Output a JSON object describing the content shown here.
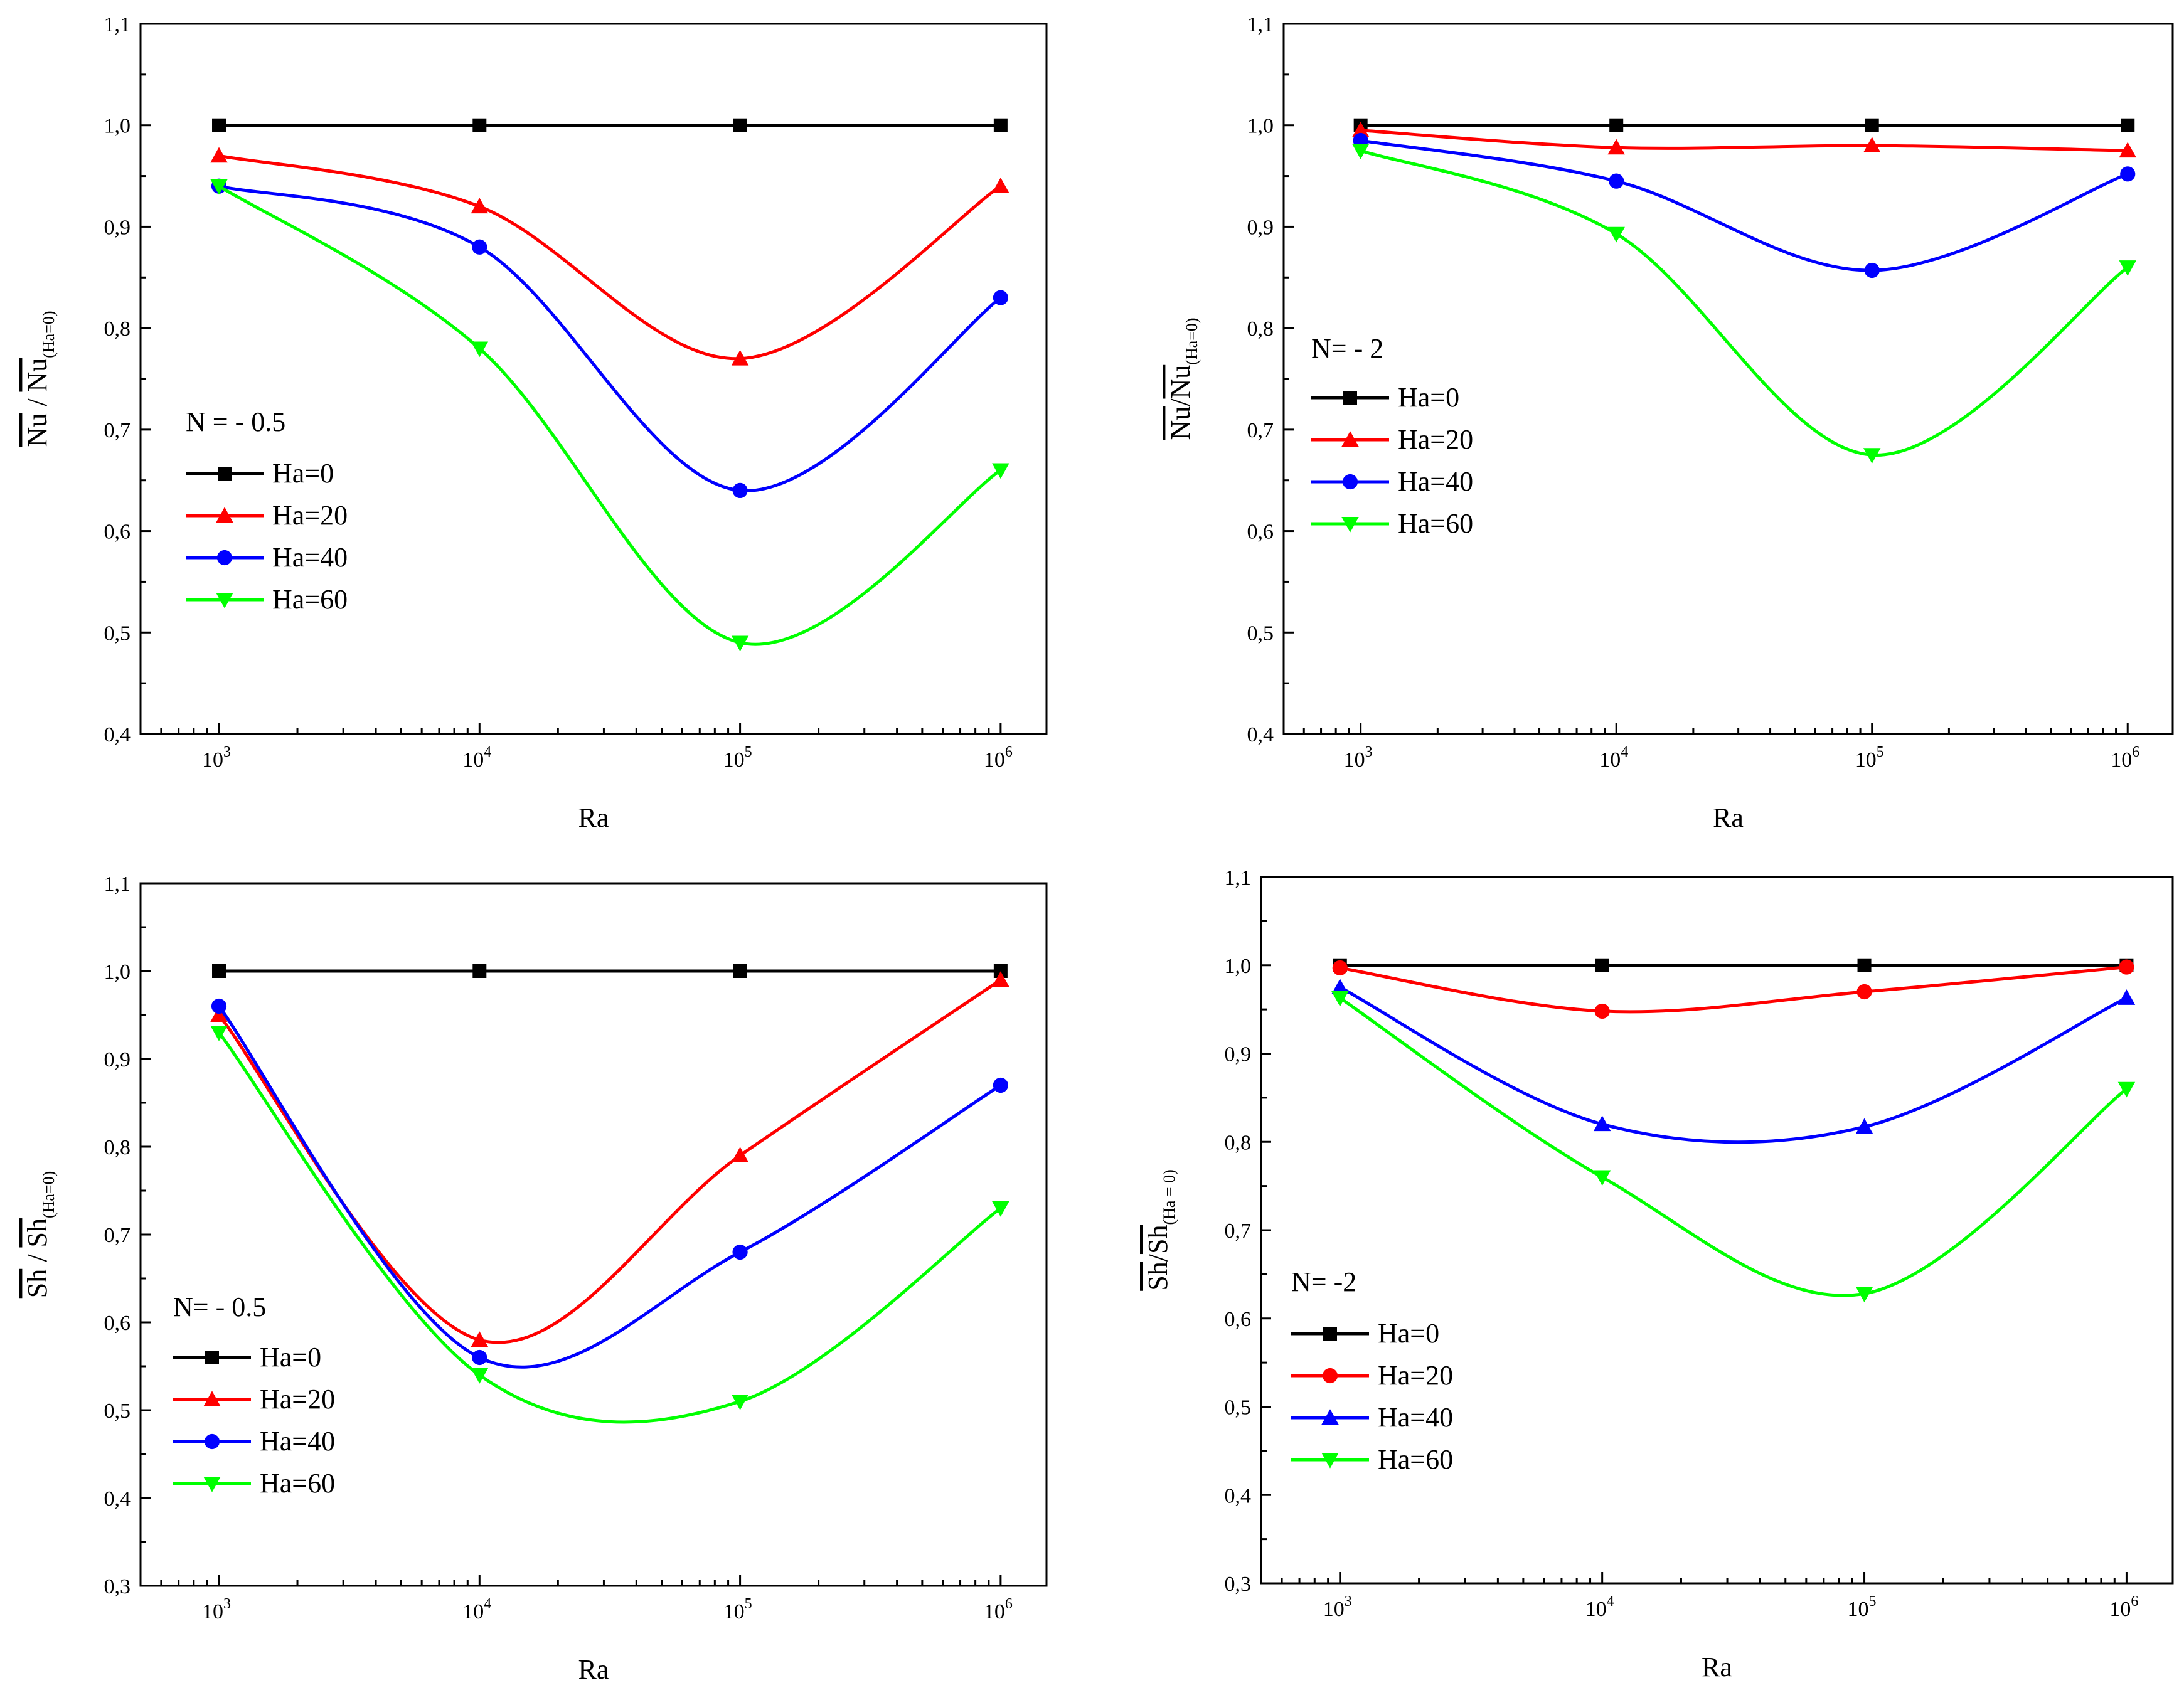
{
  "chart_data": [
    {
      "id": "panel-a",
      "type": "line",
      "xscale": "log",
      "xlabel": "Ra",
      "ylabel": {
        "base": "Nu",
        "sep": " / ",
        "sub": "(Ha=0)"
      },
      "xticks": [
        {
          "base": "10",
          "exp": "3",
          "value": 1000
        },
        {
          "base": "10",
          "exp": "4",
          "value": 10000
        },
        {
          "base": "10",
          "exp": "5",
          "value": 100000
        },
        {
          "base": "10",
          "exp": "6",
          "value": 1000000
        }
      ],
      "xlim": [
        500,
        1500000
      ],
      "ylim": [
        0.4,
        1.1
      ],
      "yticks": [
        {
          "value": 0.4,
          "label": "0,4"
        },
        {
          "value": 0.5,
          "label": "0,5"
        },
        {
          "value": 0.6,
          "label": "0,6"
        },
        {
          "value": 0.7,
          "label": "0,7"
        },
        {
          "value": 0.8,
          "label": "0,8"
        },
        {
          "value": 0.9,
          "label": "0,9"
        },
        {
          "value": 1.0,
          "label": "1,0"
        },
        {
          "value": 1.1,
          "label": "1,1"
        }
      ],
      "legend_title": "N = - 0.5",
      "x": [
        1000,
        10000,
        100000,
        1000000
      ],
      "series": [
        {
          "name": "Ha=0",
          "color": "#000000",
          "marker": "square",
          "values": [
            1.0,
            1.0,
            1.0,
            1.0
          ]
        },
        {
          "name": "Ha=20",
          "color": "#ff0000",
          "marker": "triangle-up",
          "values": [
            0.97,
            0.92,
            0.77,
            0.94
          ]
        },
        {
          "name": "Ha=40",
          "color": "#0000ff",
          "marker": "circle",
          "values": [
            0.94,
            0.88,
            0.64,
            0.83
          ]
        },
        {
          "name": "Ha=60",
          "color": "#00ff00",
          "marker": "triangle-down",
          "values": [
            0.94,
            0.78,
            0.49,
            0.66
          ]
        }
      ]
    },
    {
      "id": "panel-b",
      "type": "line",
      "xscale": "log",
      "xlabel": "Ra",
      "ylabel": {
        "base": "Nu",
        "sep": "/",
        "sub": "(Ha=0)"
      },
      "xticks": [
        {
          "base": "10",
          "exp": "3",
          "value": 1000
        },
        {
          "base": "10",
          "exp": "4",
          "value": 10000
        },
        {
          "base": "10",
          "exp": "5",
          "value": 100000
        },
        {
          "base": "10",
          "exp": "6",
          "value": 1000000
        }
      ],
      "xlim": [
        500,
        1500000
      ],
      "ylim": [
        0.4,
        1.1
      ],
      "yticks": [
        {
          "value": 0.4,
          "label": "0,4"
        },
        {
          "value": 0.5,
          "label": "0,5"
        },
        {
          "value": 0.6,
          "label": "0,6"
        },
        {
          "value": 0.7,
          "label": "0,7"
        },
        {
          "value": 0.8,
          "label": "0,8"
        },
        {
          "value": 0.9,
          "label": "0,9"
        },
        {
          "value": 1.0,
          "label": "1,0"
        },
        {
          "value": 1.1,
          "label": "1,1"
        }
      ],
      "legend_title": "N= - 2",
      "x": [
        1000,
        10000,
        100000,
        1000000
      ],
      "series": [
        {
          "name": "Ha=0",
          "color": "#000000",
          "marker": "square",
          "values": [
            1.0,
            1.0,
            1.0,
            1.0
          ]
        },
        {
          "name": "Ha=20",
          "color": "#ff0000",
          "marker": "triangle-up",
          "values": [
            0.995,
            0.978,
            0.98,
            0.975
          ]
        },
        {
          "name": "Ha=40",
          "color": "#0000ff",
          "marker": "circle",
          "values": [
            0.985,
            0.945,
            0.857,
            0.952
          ]
        },
        {
          "name": "Ha=60",
          "color": "#00ff00",
          "marker": "triangle-down",
          "values": [
            0.975,
            0.893,
            0.675,
            0.86
          ]
        }
      ]
    },
    {
      "id": "panel-c",
      "type": "line",
      "xscale": "log",
      "xlabel": "Ra",
      "ylabel": {
        "base": "Sh",
        "sep": " / ",
        "sub": "(Ha=0)"
      },
      "xticks": [
        {
          "base": "10",
          "exp": "3",
          "value": 1000
        },
        {
          "base": "10",
          "exp": "4",
          "value": 10000
        },
        {
          "base": "10",
          "exp": "5",
          "value": 100000
        },
        {
          "base": "10",
          "exp": "6",
          "value": 1000000
        }
      ],
      "xlim": [
        500,
        1500000
      ],
      "ylim": [
        0.3,
        1.1
      ],
      "yticks": [
        {
          "value": 0.3,
          "label": "0,3"
        },
        {
          "value": 0.4,
          "label": "0,4"
        },
        {
          "value": 0.5,
          "label": "0,5"
        },
        {
          "value": 0.6,
          "label": "0,6"
        },
        {
          "value": 0.7,
          "label": "0,7"
        },
        {
          "value": 0.8,
          "label": "0,8"
        },
        {
          "value": 0.9,
          "label": "0,9"
        },
        {
          "value": 1.0,
          "label": "1,0"
        },
        {
          "value": 1.1,
          "label": "1,1"
        }
      ],
      "legend_title": "N= - 0.5",
      "x": [
        1000,
        10000,
        100000,
        1000000
      ],
      "series": [
        {
          "name": "Ha=0",
          "color": "#000000",
          "marker": "square",
          "values": [
            1.0,
            1.0,
            1.0,
            1.0
          ]
        },
        {
          "name": "Ha=20",
          "color": "#ff0000",
          "marker": "triangle-up",
          "values": [
            0.95,
            0.58,
            0.79,
            0.99
          ]
        },
        {
          "name": "Ha=40",
          "color": "#0000ff",
          "marker": "circle",
          "values": [
            0.96,
            0.56,
            0.68,
            0.87
          ]
        },
        {
          "name": "Ha=60",
          "color": "#00ff00",
          "marker": "triangle-down",
          "values": [
            0.93,
            0.54,
            0.51,
            0.73
          ]
        }
      ]
    },
    {
      "id": "panel-d",
      "type": "line",
      "xscale": "log",
      "xlabel": "Ra",
      "ylabel": {
        "base": "Sh",
        "sep": "/",
        "sub": "(Ha = 0)"
      },
      "xticks": [
        {
          "base": "10",
          "exp": "3",
          "value": 1000
        },
        {
          "base": "10",
          "exp": "4",
          "value": 10000
        },
        {
          "base": "10",
          "exp": "5",
          "value": 100000
        },
        {
          "base": "10",
          "exp": "6",
          "value": 1000000
        }
      ],
      "xlim": [
        500,
        1500000
      ],
      "ylim": [
        0.3,
        1.1
      ],
      "yticks": [
        {
          "value": 0.3,
          "label": "0,3"
        },
        {
          "value": 0.4,
          "label": "0,4"
        },
        {
          "value": 0.5,
          "label": "0,5"
        },
        {
          "value": 0.6,
          "label": "0,6"
        },
        {
          "value": 0.7,
          "label": "0,7"
        },
        {
          "value": 0.8,
          "label": "0,8"
        },
        {
          "value": 0.9,
          "label": "0,9"
        },
        {
          "value": 1.0,
          "label": "1,0"
        },
        {
          "value": 1.1,
          "label": "1,1"
        }
      ],
      "legend_title": "N= -2",
      "x": [
        1000,
        10000,
        100000,
        1000000
      ],
      "series": [
        {
          "name": "Ha=0",
          "color": "#000000",
          "marker": "square",
          "values": [
            1.0,
            1.0,
            1.0,
            1.0
          ]
        },
        {
          "name": "Ha=20",
          "color": "#ff0000",
          "marker": "circle",
          "values": [
            0.997,
            0.948,
            0.97,
            0.998
          ]
        },
        {
          "name": "Ha=40",
          "color": "#0000ff",
          "marker": "triangle-up",
          "values": [
            0.975,
            0.82,
            0.817,
            0.963
          ]
        },
        {
          "name": "Ha=60",
          "color": "#00ff00",
          "marker": "triangle-down",
          "values": [
            0.963,
            0.76,
            0.628,
            0.86
          ]
        }
      ]
    }
  ]
}
